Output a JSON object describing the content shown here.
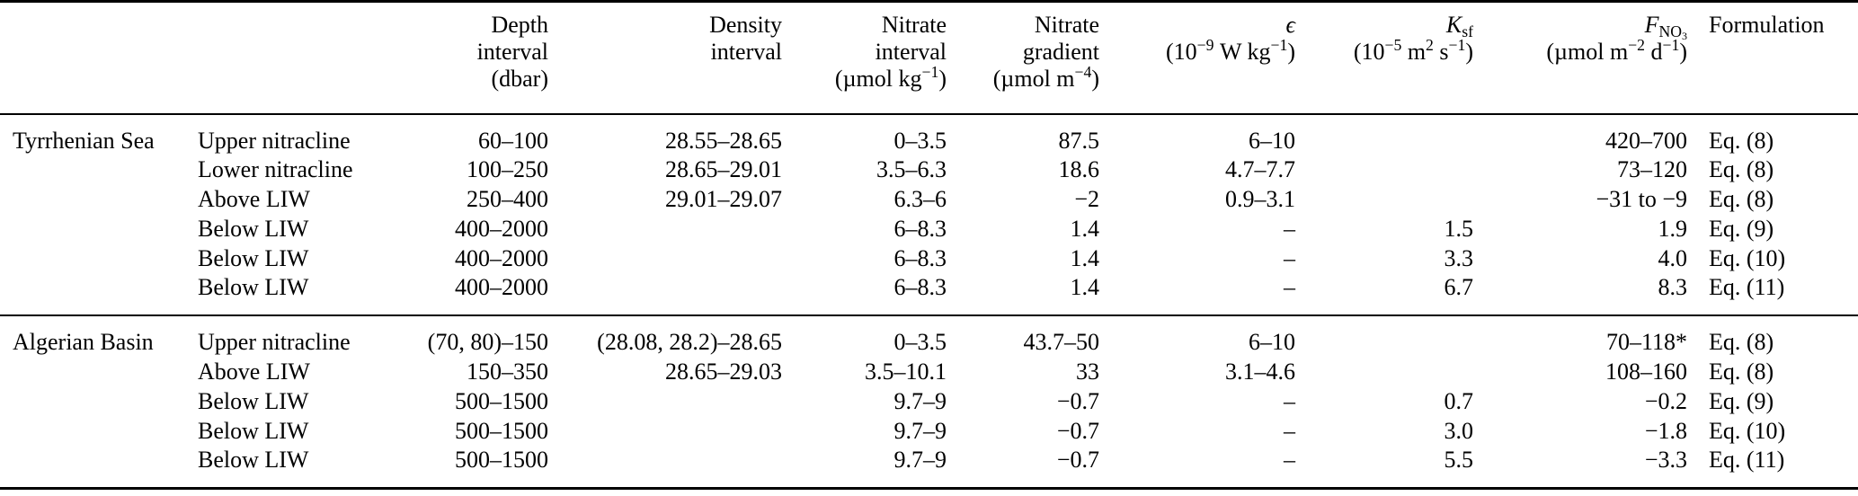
{
  "table": {
    "columns": [
      {
        "id": "region",
        "align": "left",
        "header_html": ""
      },
      {
        "id": "layer",
        "align": "left",
        "header_html": ""
      },
      {
        "id": "depth",
        "align": "right",
        "header_html": "Depth<br>interval<br>(dbar)"
      },
      {
        "id": "density",
        "align": "right",
        "header_html": "Density<br>interval"
      },
      {
        "id": "nitrate_interval",
        "align": "right",
        "header_html": "Nitrate<br>interval<br>(µmol kg<sup>−1</sup>)"
      },
      {
        "id": "nitrate_gradient",
        "align": "right",
        "header_html": "Nitrate<br>gradient<br>(µmol m<sup>−4</sup>)"
      },
      {
        "id": "epsilon",
        "align": "right",
        "header_html": "<i>ϵ</i><br>(10<sup>−9</sup> W kg<sup>−1</sup>)"
      },
      {
        "id": "ksf",
        "align": "right",
        "header_html": "<i>K</i><sub>sf</sub><br>(10<sup>−5</sup> m<sup>2</sup> s<sup>−1</sup>)"
      },
      {
        "id": "fno3",
        "align": "right",
        "header_html": "<i>F</i><sub>NO<sub>3</sub></sub><br>(µmol m<sup>−2</sup> d<sup>−1</sup>)"
      },
      {
        "id": "formulation",
        "align": "left",
        "header_html": "Formulation"
      }
    ],
    "groups": [
      {
        "name": "Tyrrhenian Sea",
        "rows": [
          {
            "layer": "Upper nitracline",
            "depth": "60–100",
            "density": "28.55–28.65",
            "nitrate_interval": "0–3.5",
            "nitrate_gradient": "87.5",
            "epsilon": "6–10",
            "ksf": "",
            "fno3": "420–700",
            "formulation": "Eq. (8)"
          },
          {
            "layer": "Lower nitracline",
            "depth": "100–250",
            "density": "28.65–29.01",
            "nitrate_interval": "3.5–6.3",
            "nitrate_gradient": "18.6",
            "epsilon": "4.7–7.7",
            "ksf": "",
            "fno3": "73–120",
            "formulation": "Eq. (8)"
          },
          {
            "layer": "Above LIW",
            "depth": "250–400",
            "density": "29.01–29.07",
            "nitrate_interval": "6.3–6",
            "nitrate_gradient": "−2",
            "epsilon": "0.9–3.1",
            "ksf": "",
            "fno3": "−31 to −9",
            "formulation": "Eq. (8)"
          },
          {
            "layer": "Below LIW",
            "depth": "400–2000",
            "density": "",
            "nitrate_interval": "6–8.3",
            "nitrate_gradient": "1.4",
            "epsilon": "–",
            "ksf": "1.5",
            "fno3": "1.9",
            "formulation": "Eq. (9)"
          },
          {
            "layer": "Below LIW",
            "depth": "400–2000",
            "density": "",
            "nitrate_interval": "6–8.3",
            "nitrate_gradient": "1.4",
            "epsilon": "–",
            "ksf": "3.3",
            "fno3": "4.0",
            "formulation": "Eq. (10)"
          },
          {
            "layer": "Below LIW",
            "depth": "400–2000",
            "density": "",
            "nitrate_interval": "6–8.3",
            "nitrate_gradient": "1.4",
            "epsilon": "–",
            "ksf": "6.7",
            "fno3": "8.3",
            "formulation": "Eq. (11)"
          }
        ]
      },
      {
        "name": "Algerian Basin",
        "rows": [
          {
            "layer": "Upper nitracline",
            "depth": "(70, 80)–150",
            "density": "(28.08, 28.2)–28.65",
            "nitrate_interval": "0–3.5",
            "nitrate_gradient": "43.7–50",
            "epsilon": "6–10",
            "ksf": "",
            "fno3": "70–118*",
            "formulation": "Eq. (8)"
          },
          {
            "layer": "Above LIW",
            "depth": "150–350",
            "density": "28.65–29.03",
            "nitrate_interval": "3.5–10.1",
            "nitrate_gradient": "33",
            "epsilon": "3.1–4.6",
            "ksf": "",
            "fno3": "108–160",
            "formulation": "Eq. (8)"
          },
          {
            "layer": "Below LIW",
            "depth": "500–1500",
            "density": "",
            "nitrate_interval": "9.7–9",
            "nitrate_gradient": "−0.7",
            "epsilon": "–",
            "ksf": "0.7",
            "fno3": "−0.2",
            "formulation": "Eq. (9)"
          },
          {
            "layer": "Below LIW",
            "depth": "500–1500",
            "density": "",
            "nitrate_interval": "9.7–9",
            "nitrate_gradient": "−0.7",
            "epsilon": "–",
            "ksf": "3.0",
            "fno3": "−1.8",
            "formulation": "Eq. (10)"
          },
          {
            "layer": "Below LIW",
            "depth": "500–1500",
            "density": "",
            "nitrate_interval": "9.7–9",
            "nitrate_gradient": "−0.7",
            "epsilon": "–",
            "ksf": "5.5",
            "fno3": "−3.3",
            "formulation": "Eq. (11)"
          }
        ]
      }
    ]
  }
}
